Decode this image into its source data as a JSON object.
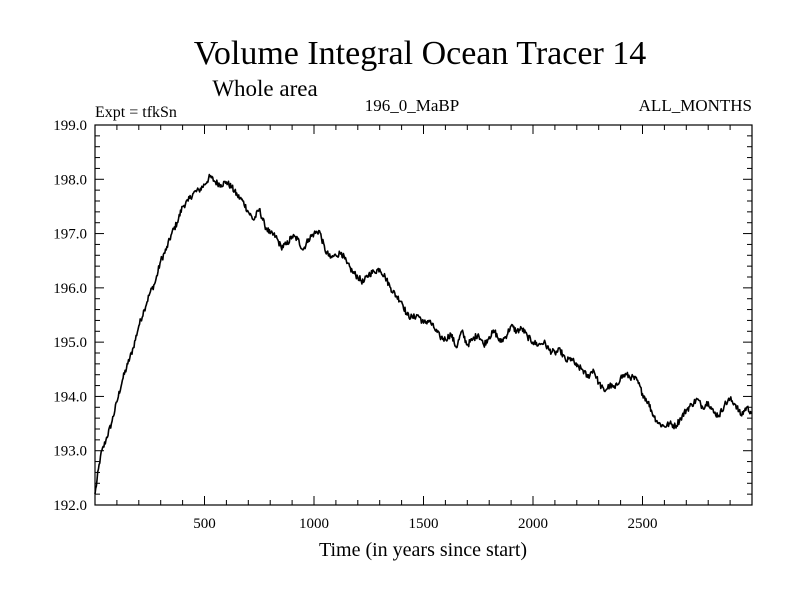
{
  "chart_data": {
    "type": "line",
    "title": "Volume Integral Ocean Tracer 14",
    "subtitle": "Whole area",
    "annotations": {
      "left": "Expt = tfkSn",
      "center": "196_0_MaBP",
      "right": "ALL_MONTHS"
    },
    "xlabel": "Time (in years since start)",
    "ylabel": "",
    "xlim": [
      0,
      3000
    ],
    "ylim": [
      192.0,
      199.0
    ],
    "x_ticks": [
      500,
      1000,
      1500,
      2000,
      2500
    ],
    "x_tick_labels": [
      "500",
      "1000",
      "1500",
      "2000",
      "2500"
    ],
    "y_ticks": [
      192.0,
      193.0,
      194.0,
      195.0,
      196.0,
      197.0,
      198.0,
      199.0
    ],
    "y_tick_labels": [
      "192.0",
      "193.0",
      "194.0",
      "195.0",
      "196.0",
      "197.0",
      "198.0",
      "199.0"
    ],
    "grid": false,
    "line_color": "#000000",
    "series": [
      {
        "name": "Volume Integral Ocean Tracer 14",
        "x": [
          0,
          25,
          50,
          75,
          100,
          125,
          150,
          175,
          200,
          225,
          250,
          275,
          300,
          325,
          350,
          375,
          400,
          425,
          450,
          475,
          500,
          525,
          550,
          575,
          600,
          625,
          650,
          675,
          700,
          725,
          750,
          775,
          800,
          825,
          850,
          875,
          900,
          925,
          950,
          975,
          1000,
          1025,
          1050,
          1075,
          1100,
          1125,
          1150,
          1175,
          1200,
          1225,
          1250,
          1275,
          1300,
          1325,
          1350,
          1375,
          1400,
          1425,
          1450,
          1475,
          1500,
          1525,
          1550,
          1575,
          1600,
          1625,
          1650,
          1675,
          1700,
          1725,
          1750,
          1775,
          1800,
          1825,
          1850,
          1875,
          1900,
          1925,
          1950,
          1975,
          2000,
          2025,
          2050,
          2075,
          2100,
          2125,
          2150,
          2175,
          2200,
          2225,
          2250,
          2275,
          2300,
          2325,
          2350,
          2375,
          2400,
          2425,
          2450,
          2475,
          2500,
          2525,
          2550,
          2575,
          2600,
          2625,
          2650,
          2675,
          2700,
          2725,
          2750,
          2775,
          2800,
          2825,
          2850,
          2875,
          2900,
          2925,
          2950,
          2975,
          3000
        ],
        "values": [
          192.2,
          192.9,
          193.2,
          193.5,
          193.9,
          194.3,
          194.6,
          194.9,
          195.3,
          195.6,
          195.9,
          196.1,
          196.5,
          196.7,
          197.0,
          197.2,
          197.5,
          197.6,
          197.75,
          197.8,
          197.9,
          198.05,
          197.95,
          197.9,
          197.95,
          197.85,
          197.7,
          197.6,
          197.4,
          197.25,
          197.45,
          197.15,
          197.0,
          196.95,
          196.75,
          196.8,
          196.95,
          196.9,
          196.7,
          196.9,
          197.0,
          197.05,
          196.7,
          196.55,
          196.6,
          196.65,
          196.45,
          196.3,
          196.2,
          196.1,
          196.25,
          196.3,
          196.35,
          196.2,
          196.0,
          195.85,
          195.75,
          195.5,
          195.45,
          195.5,
          195.35,
          195.4,
          195.25,
          195.1,
          195.05,
          195.15,
          194.9,
          195.2,
          194.95,
          195.05,
          195.15,
          194.95,
          195.1,
          195.2,
          195.0,
          195.1,
          195.3,
          195.2,
          195.25,
          195.1,
          195.0,
          194.95,
          195.0,
          194.85,
          194.8,
          194.85,
          194.65,
          194.7,
          194.55,
          194.5,
          194.35,
          194.5,
          194.25,
          194.1,
          194.2,
          194.15,
          194.35,
          194.4,
          194.35,
          194.3,
          194.05,
          193.9,
          193.65,
          193.5,
          193.45,
          193.5,
          193.45,
          193.6,
          193.75,
          193.85,
          193.95,
          193.8,
          193.9,
          193.7,
          193.65,
          193.85,
          193.95,
          193.85,
          193.65,
          193.8,
          193.7
        ]
      }
    ]
  }
}
